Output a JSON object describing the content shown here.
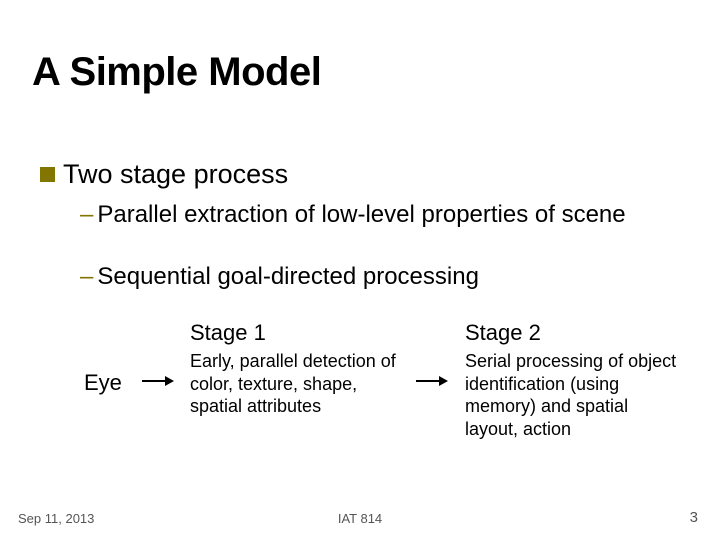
{
  "title": "A Simple Model",
  "bullet": {
    "main": "Two stage process",
    "sub1": "Parallel extraction of low-level properties of scene",
    "sub2": "Sequential goal-directed processing"
  },
  "diagram": {
    "eye": "Eye",
    "stage1": {
      "title": "Stage 1",
      "desc": "Early, parallel detection of color, texture, shape, spatial attributes"
    },
    "stage2": {
      "title": "Stage 2",
      "desc": "Serial processing of object identification (using memory) and spatial layout, action"
    }
  },
  "footer": {
    "date": "Sep 11, 2013",
    "course": "IAT 814",
    "page": "3"
  },
  "colors": {
    "accent": "#827600",
    "text": "#000000",
    "footer": "#555555",
    "background": "#ffffff"
  }
}
